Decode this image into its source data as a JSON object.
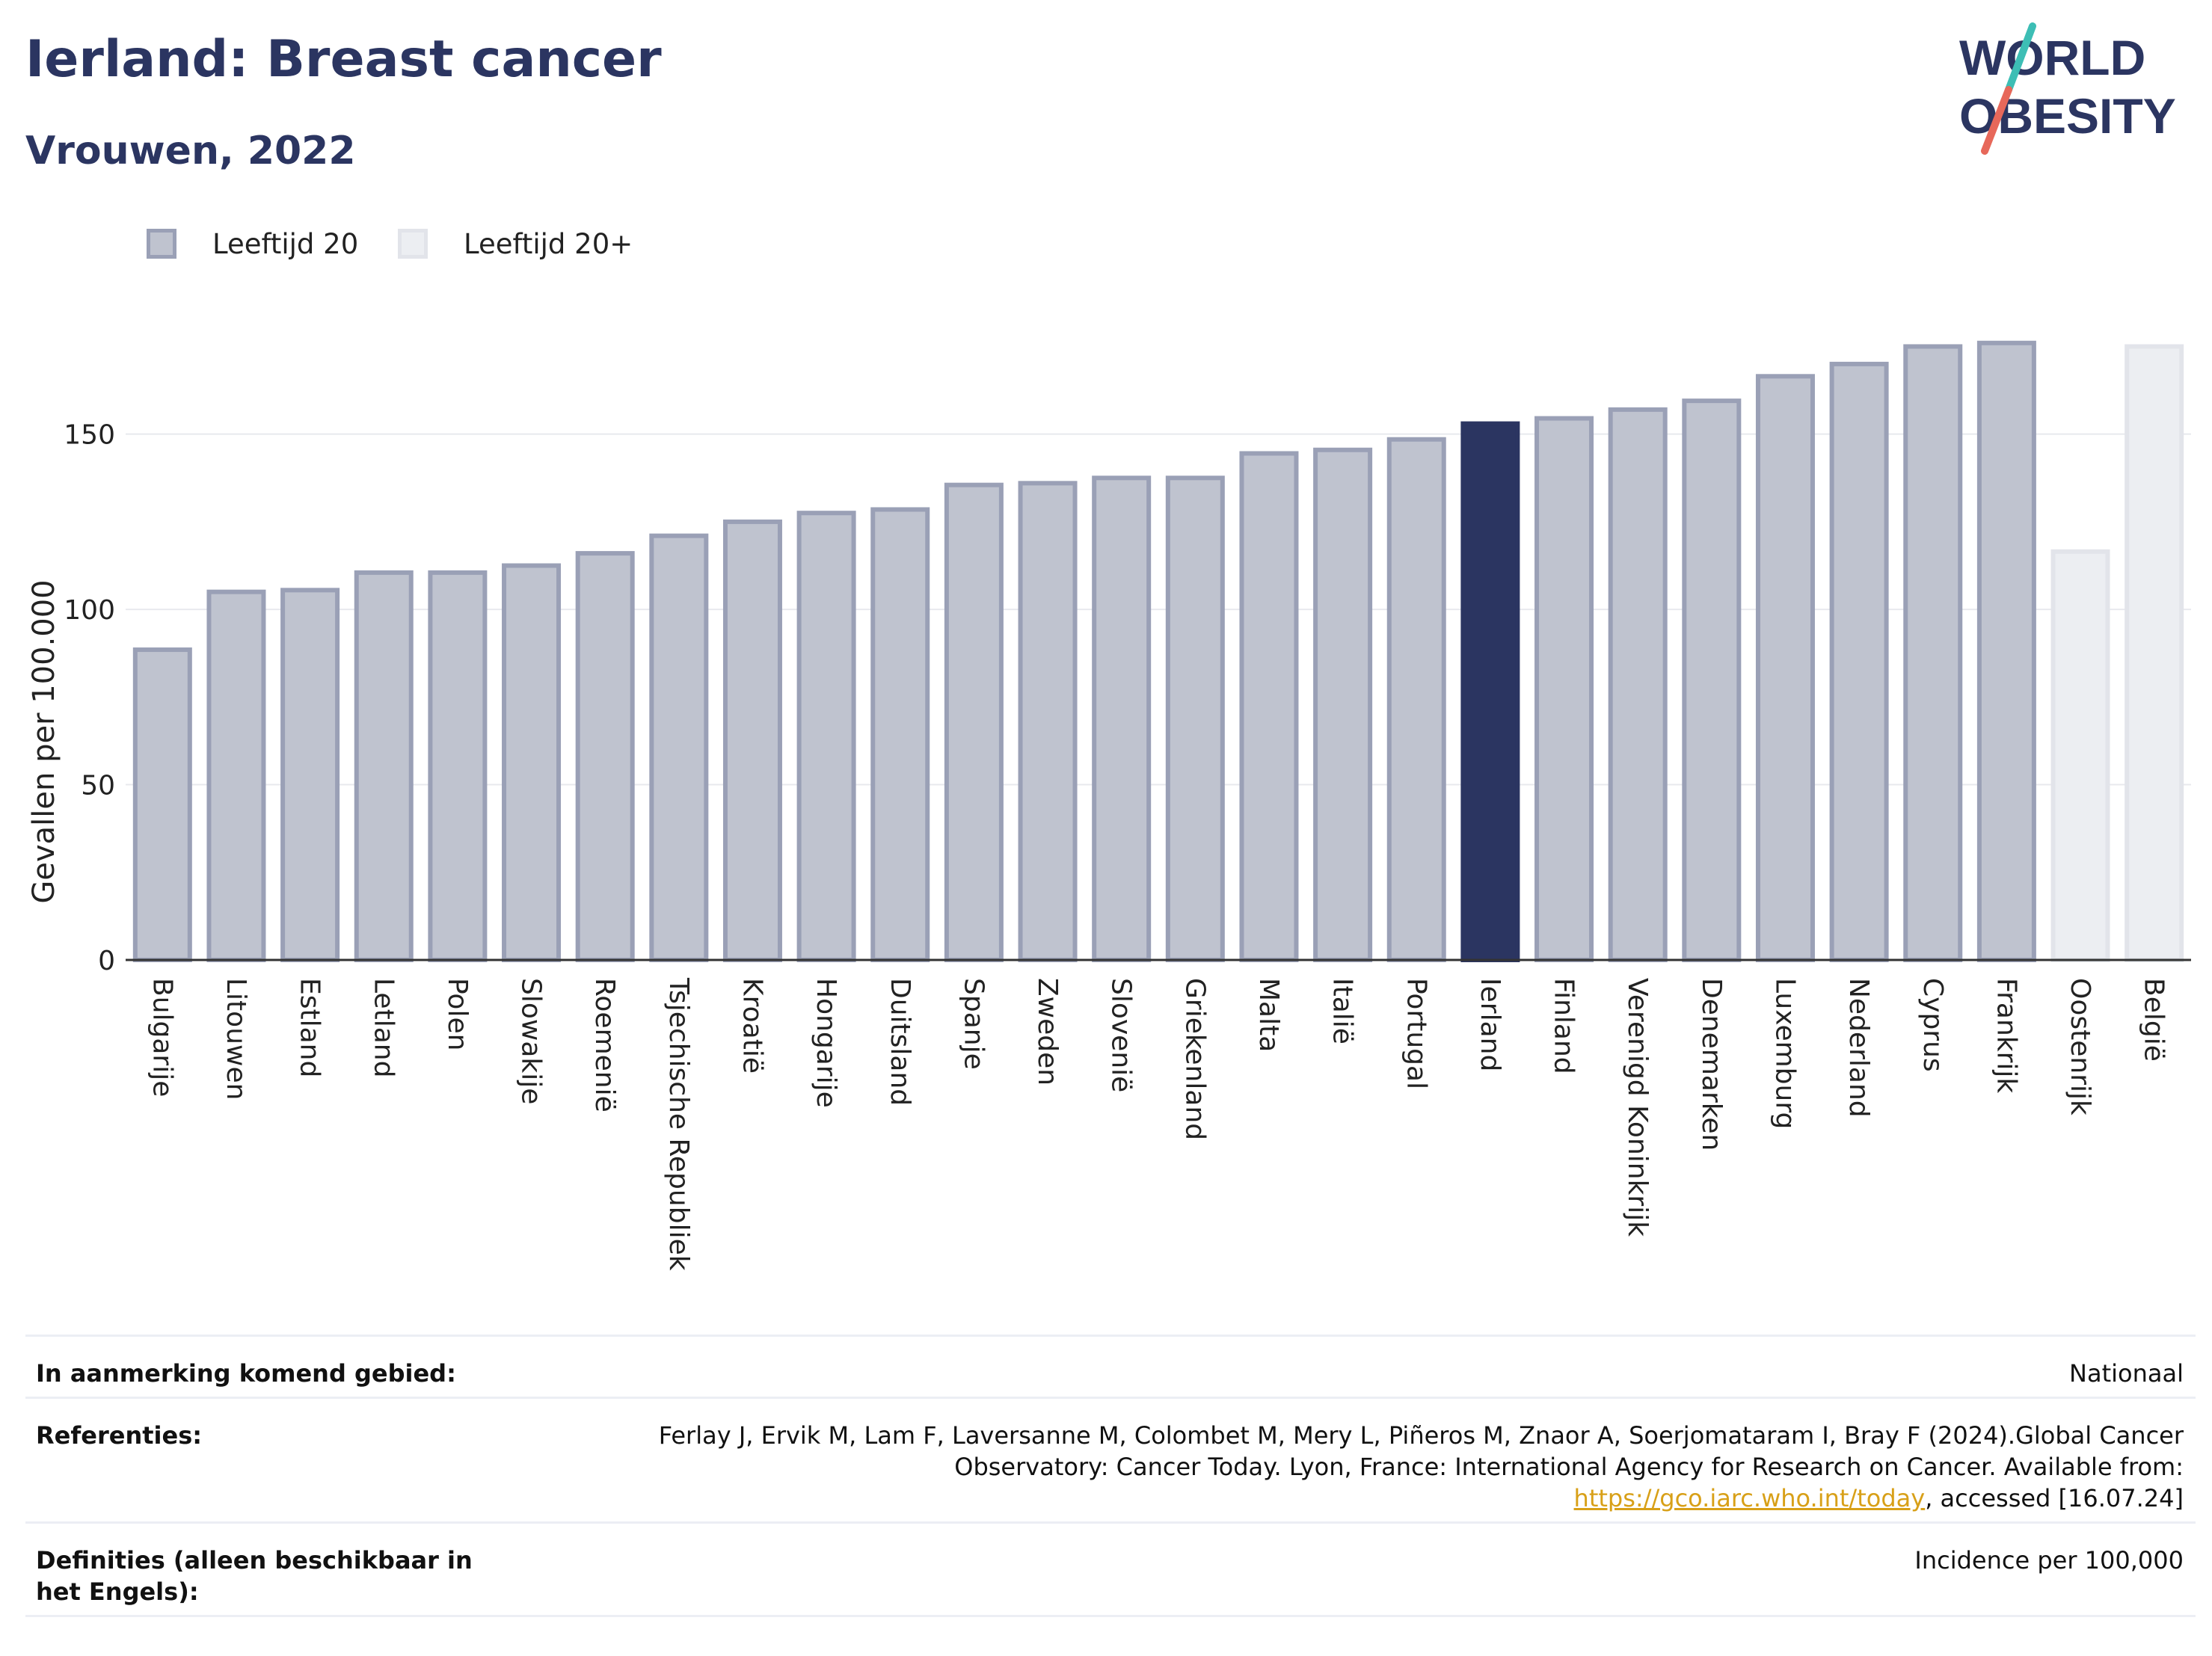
{
  "header": {
    "title": "Ierland: Breast cancer",
    "subtitle": "Vrouwen, 2022"
  },
  "logo": {
    "line1": "WORLD",
    "line2": "OBESITY",
    "text_color": "#2b3561",
    "slash_colors": [
      "#3dbeb5",
      "#e7685a"
    ]
  },
  "legend": [
    {
      "label": "Leeftijd 20",
      "fill": "#bfc3cf",
      "stroke": "#9aa0b6"
    },
    {
      "label": "Leeftijd 20+",
      "fill": "#eceef2",
      "stroke": "#e2e4ea"
    }
  ],
  "chart_data": {
    "type": "bar",
    "title": "",
    "ylabel": "Gevallen per 100.000",
    "xlabel": "",
    "ylim": [
      0,
      180
    ],
    "yticks": [
      0,
      50,
      100,
      150
    ],
    "grid": true,
    "legend_position": "top-left",
    "highlight_color": "#2b3561",
    "categories": [
      "Bulgarije",
      "Litouwen",
      "Estland",
      "Letland",
      "Polen",
      "Slowakije",
      "Roemenië",
      "Tsjechische Republiek",
      "Kroatië",
      "Hongarije",
      "Duitsland",
      "Spanje",
      "Zweden",
      "Slovenië",
      "Griekenland",
      "Malta",
      "Italië",
      "Portugal",
      "Ierland",
      "Finland",
      "Verenigd Koninkrijk",
      "Denemarken",
      "Luxemburg",
      "Nederland",
      "Cyprus",
      "Frankrijk",
      "Oostenrijk",
      "België"
    ],
    "values": [
      88.5,
      105,
      105.5,
      110.5,
      110.5,
      112.5,
      116,
      121,
      125,
      127.5,
      128.5,
      135.5,
      136,
      137.5,
      137.5,
      144.5,
      145.5,
      148.5,
      153,
      154.5,
      157,
      159.5,
      166.5,
      170,
      175,
      176,
      116.5,
      175
    ],
    "series_group": [
      "Leeftijd 20",
      "Leeftijd 20",
      "Leeftijd 20",
      "Leeftijd 20",
      "Leeftijd 20",
      "Leeftijd 20",
      "Leeftijd 20",
      "Leeftijd 20",
      "Leeftijd 20",
      "Leeftijd 20",
      "Leeftijd 20",
      "Leeftijd 20",
      "Leeftijd 20",
      "Leeftijd 20",
      "Leeftijd 20",
      "Leeftijd 20",
      "Leeftijd 20",
      "Leeftijd 20",
      "Leeftijd 20",
      "Leeftijd 20",
      "Leeftijd 20",
      "Leeftijd 20",
      "Leeftijd 20",
      "Leeftijd 20",
      "Leeftijd 20",
      "Leeftijd 20",
      "Leeftijd 20+",
      "Leeftijd 20+"
    ],
    "highlight": "Ierland"
  },
  "info_table": [
    {
      "label": "In aanmerking komend gebied:",
      "value": "Nationaal"
    },
    {
      "label": "Referenties:",
      "value_parts": {
        "before": "Ferlay J, Ervik M, Lam F, Laversanne M, Colombet M, Mery L, Piñeros M, Znaor A, Soerjomataram I, Bray F (2024).Global Cancer Observatory: Cancer Today. Lyon, France: International Agency for Research on Cancer. Available from: ",
        "link": "https://gco.iarc.who.int/today",
        "after": ", accessed [16.07.24]"
      }
    },
    {
      "label": "Definities (alleen beschikbaar in het Engels):",
      "value": "Incidence per 100,000"
    }
  ]
}
